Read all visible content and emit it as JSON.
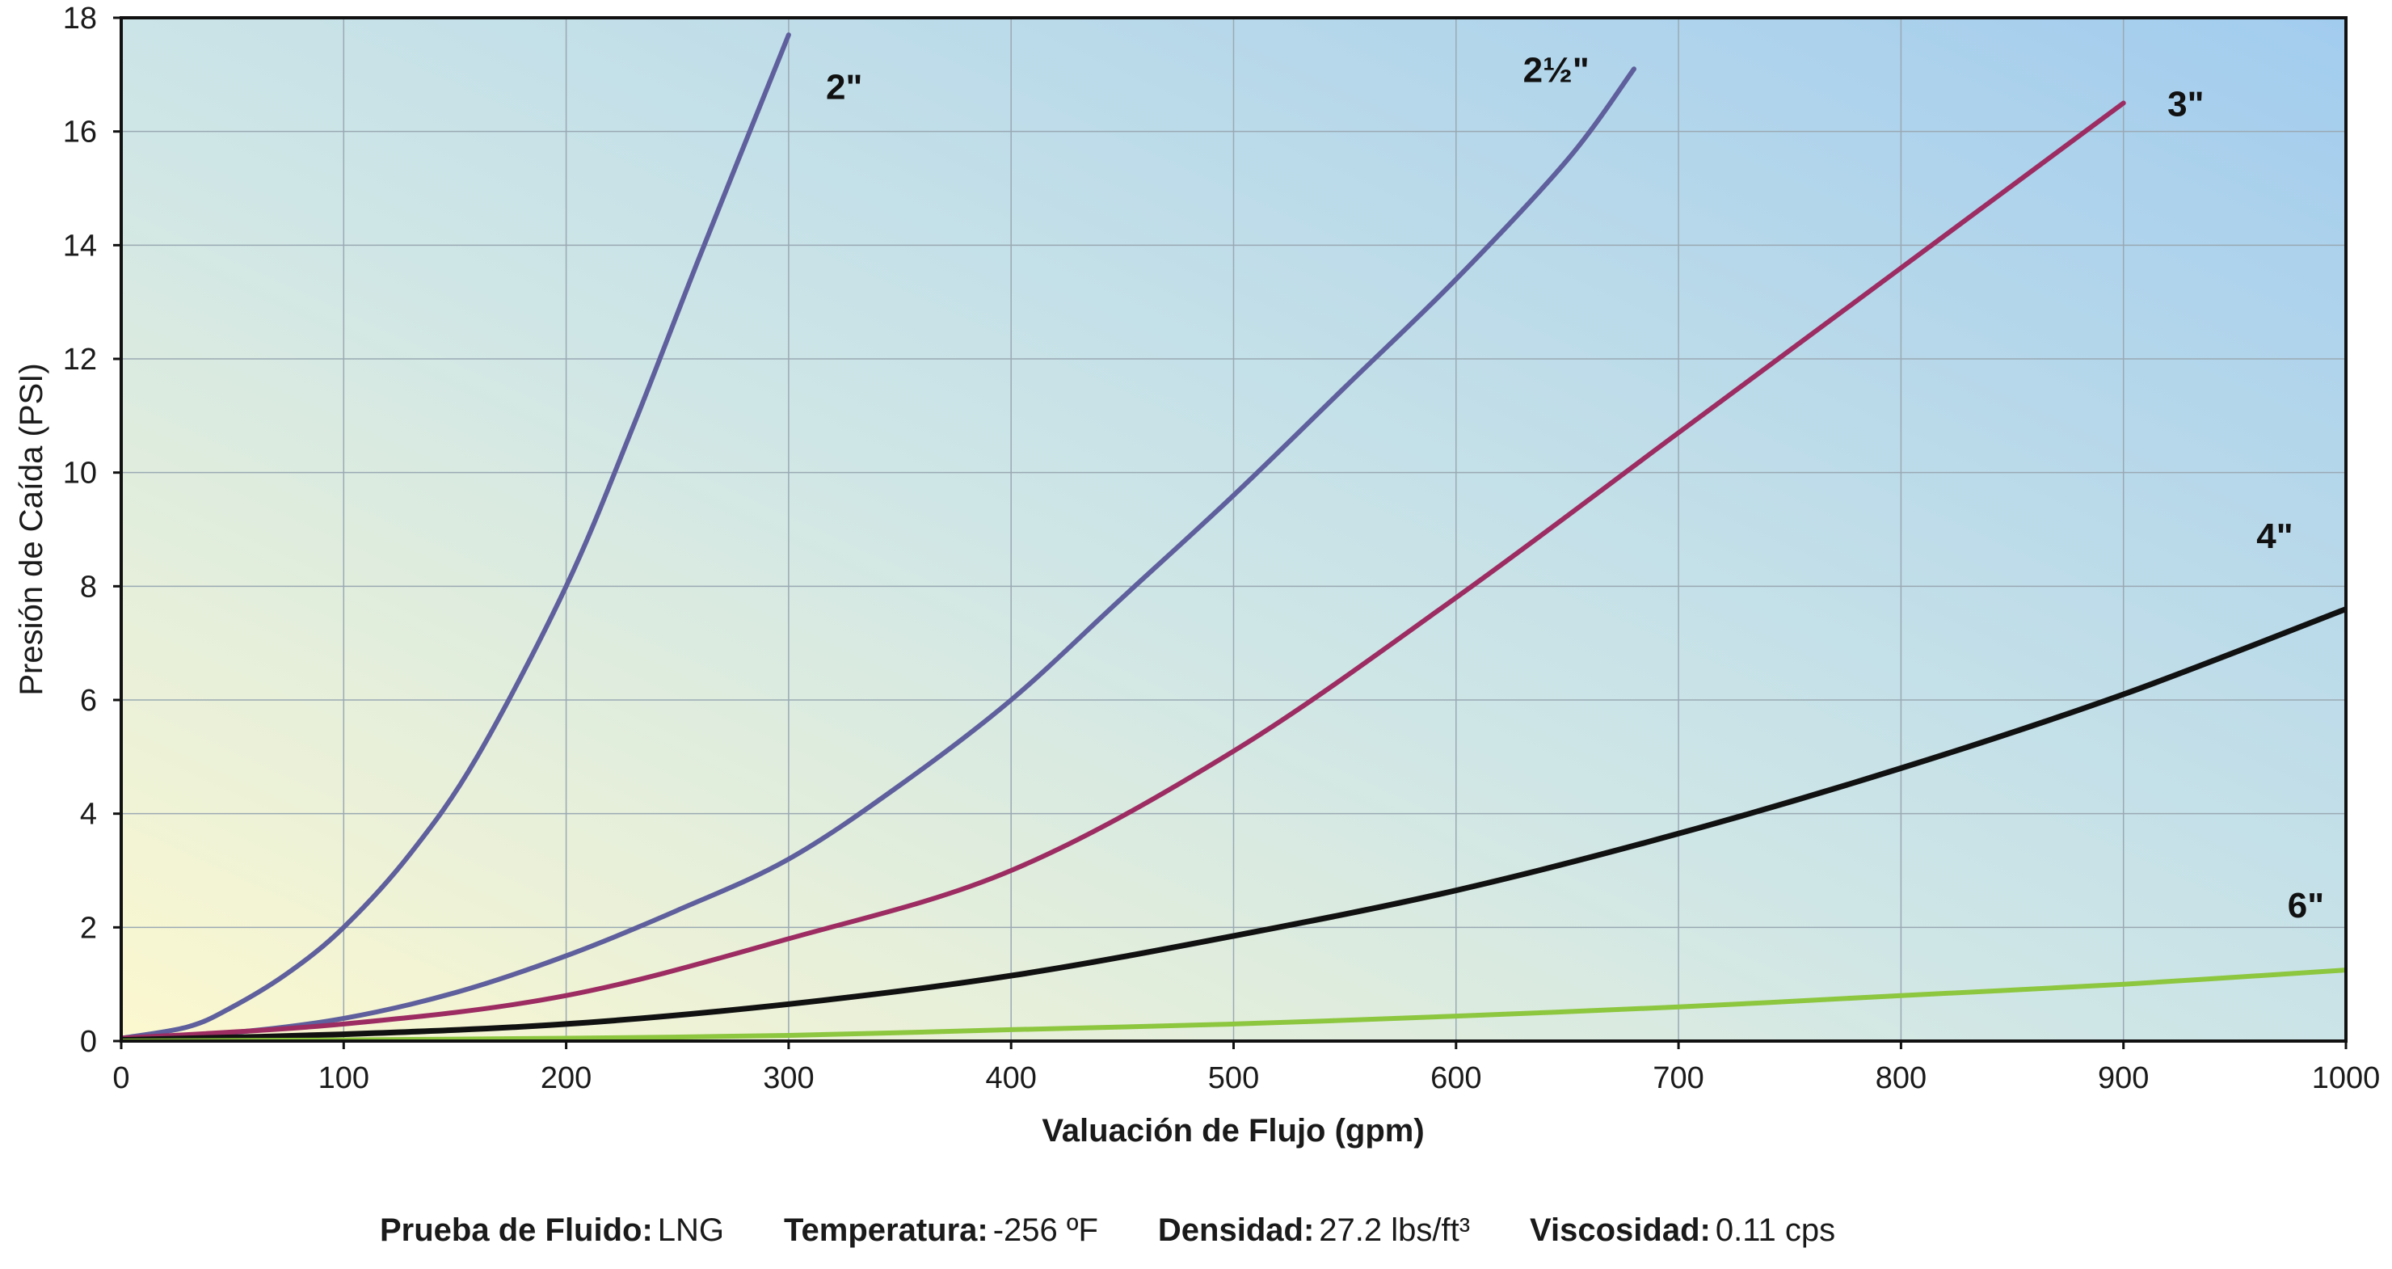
{
  "chart_data": {
    "type": "line",
    "xlabel": "Valuación de Flujo (gpm)",
    "ylabel": "Presión de Caída (PSI)",
    "xlim": [
      0,
      1000
    ],
    "ylim": [
      0,
      18
    ],
    "x_ticks": [
      "0",
      "100",
      "200",
      "300",
      "400",
      "500",
      "600",
      "700",
      "800",
      "900",
      "1000"
    ],
    "y_ticks": [
      "0",
      "2",
      "4",
      "6",
      "8",
      "10",
      "12",
      "14",
      "16",
      "18"
    ],
    "grid": true,
    "series": [
      {
        "name": "2\"",
        "color": "#5e5f9c",
        "x": [
          0,
          30,
          50,
          75,
          100,
          130,
          160,
          200,
          230,
          260,
          300
        ],
        "y": [
          0.05,
          0.25,
          0.6,
          1.2,
          2.0,
          3.3,
          5.0,
          8.0,
          10.8,
          13.8,
          17.7
        ]
      },
      {
        "name": "2½\"",
        "color": "#5e5f9c",
        "x": [
          0,
          50,
          100,
          150,
          200,
          250,
          300,
          350,
          400,
          450,
          500,
          550,
          600,
          650,
          680
        ],
        "y": [
          0.05,
          0.15,
          0.4,
          0.85,
          1.5,
          2.3,
          3.2,
          4.5,
          6.0,
          7.8,
          9.6,
          11.5,
          13.4,
          15.5,
          17.1
        ]
      },
      {
        "name": "3\"",
        "color": "#9c2c62",
        "x": [
          0,
          100,
          200,
          300,
          400,
          500,
          600,
          700,
          800,
          900
        ],
        "y": [
          0.05,
          0.3,
          0.8,
          1.8,
          3.0,
          5.1,
          7.8,
          10.7,
          13.6,
          16.5
        ]
      },
      {
        "name": "4\"",
        "color": "#111111",
        "x": [
          0,
          100,
          200,
          300,
          400,
          500,
          600,
          700,
          800,
          900,
          1000
        ],
        "y": [
          0.02,
          0.12,
          0.3,
          0.65,
          1.15,
          1.85,
          2.65,
          3.65,
          4.8,
          6.1,
          7.6
        ]
      },
      {
        "name": "6\"",
        "color": "#8dc63f",
        "x": [
          0,
          100,
          200,
          300,
          400,
          500,
          600,
          700,
          800,
          900,
          1000
        ],
        "y": [
          0.0,
          0.02,
          0.05,
          0.1,
          0.2,
          0.3,
          0.44,
          0.6,
          0.8,
          1.0,
          1.25
        ]
      }
    ],
    "series_labels": [
      {
        "text": "2\"",
        "x": 325,
        "y": 16.8
      },
      {
        "text": "2½\"",
        "x": 645,
        "y": 17.1
      },
      {
        "text": "3\"",
        "x": 928,
        "y": 16.5
      },
      {
        "text": "4\"",
        "x": 968,
        "y": 8.9
      },
      {
        "text": "6\"",
        "x": 982,
        "y": 2.4
      }
    ]
  },
  "footer": {
    "fluid_label": "Prueba de Fluido:",
    "fluid_value": "LNG",
    "temp_label": "Temperatura:",
    "temp_value": "-256 ºF",
    "density_label": "Densidad:",
    "density_value": "27.2 lbs/ft³",
    "viscosity_label": "Viscosidad:",
    "viscosity_value": "0.11 cps"
  }
}
